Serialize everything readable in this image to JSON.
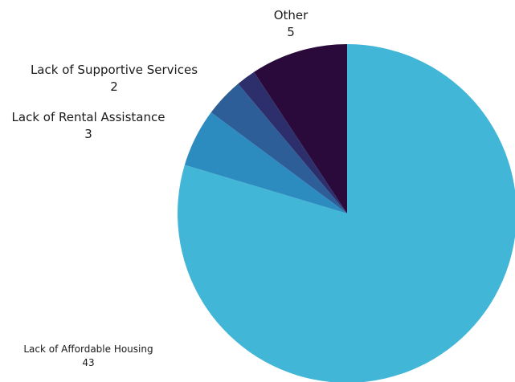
{
  "chart_data": {
    "type": "pie",
    "title": "",
    "start_angle_deg": 0,
    "direction": "clockwise",
    "slices": [
      {
        "label": "Lack of Affordable Housing",
        "value": 43,
        "color": "#41b6d6"
      },
      {
        "label": "Lack of Rental Assistance",
        "value": 3,
        "color": "#2c8cc0"
      },
      {
        "label": "Lack of Supportive Services",
        "value": 2,
        "color": "#2e5e98"
      },
      {
        "label": "",
        "value": 1,
        "color": "#2c2f6b"
      },
      {
        "label": "Other",
        "value": 5,
        "color": "#2a0a3a"
      }
    ]
  }
}
